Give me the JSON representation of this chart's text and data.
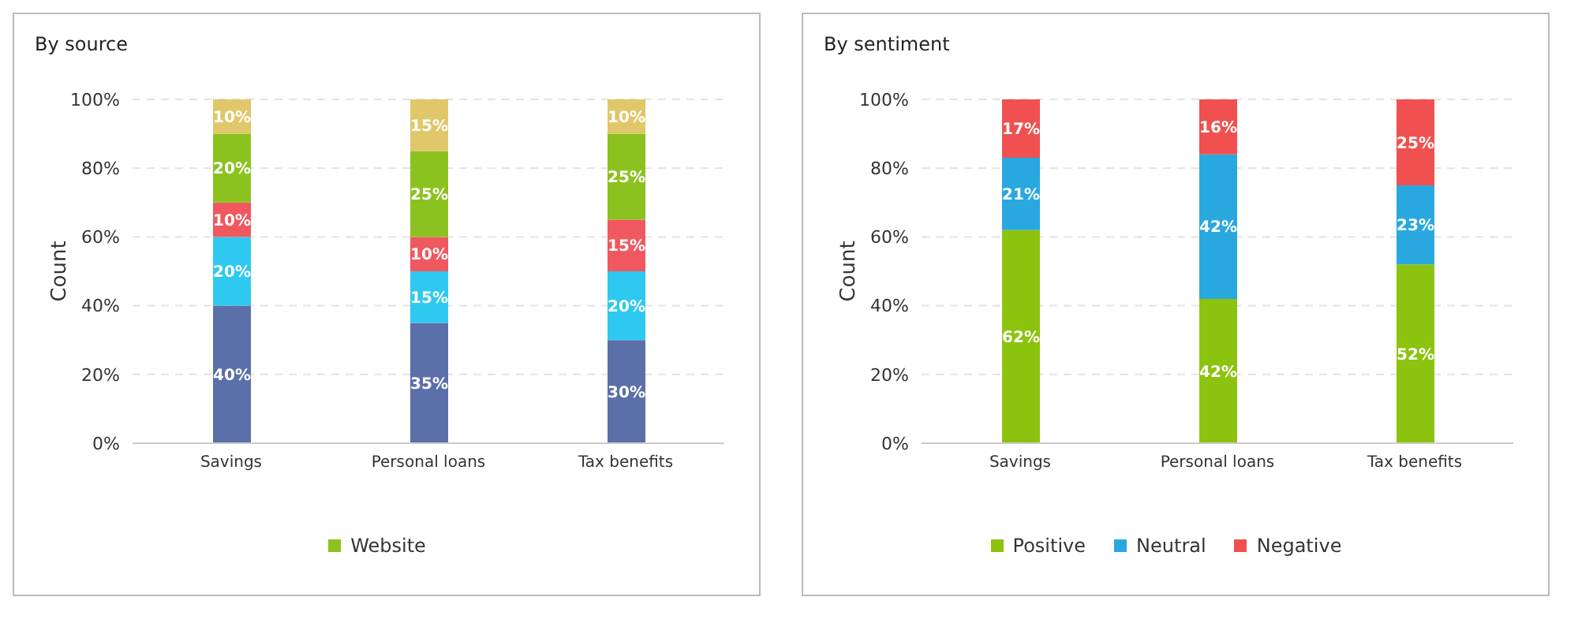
{
  "chart_data": [
    {
      "type": "bar",
      "title": "By source",
      "ylabel": "Count",
      "stacked": true,
      "grid": "y",
      "legend": "bottom",
      "categories": [
        "Savings",
        "Personal loans",
        "Tax benefits"
      ],
      "ylim": [
        0,
        100
      ],
      "yticks": [
        {
          "value": 0,
          "label": "0%"
        },
        {
          "value": 20,
          "label": "20%"
        },
        {
          "value": 40,
          "label": "40%"
        },
        {
          "value": 60,
          "label": "60%"
        },
        {
          "value": 80,
          "label": "80%"
        },
        {
          "value": 100,
          "label": "100%"
        }
      ],
      "series": [
        {
          "color": "#5b6fa8",
          "values": [
            40,
            35,
            30
          ],
          "value_labels": [
            "40%",
            "35%",
            "30%"
          ]
        },
        {
          "color": "#2ec9f0",
          "values": [
            20,
            15,
            20
          ],
          "value_labels": [
            "20%",
            "15%",
            "20%"
          ]
        },
        {
          "color": "#f0585f",
          "values": [
            10,
            10,
            15
          ],
          "value_labels": [
            "10%",
            "10%",
            "15%"
          ]
        },
        {
          "name": "Website",
          "color": "#8cc21f",
          "values": [
            20,
            25,
            25
          ],
          "value_labels": [
            "20%",
            "25%",
            "25%"
          ]
        },
        {
          "color": "#e0c76a",
          "values": [
            10,
            15,
            10
          ],
          "value_labels": [
            "10%",
            "15%",
            "10%"
          ]
        }
      ]
    },
    {
      "type": "bar",
      "title": "By sentiment",
      "ylabel": "Count",
      "stacked": true,
      "grid": "y",
      "legend": "bottom",
      "categories": [
        "Savings",
        "Personal loans",
        "Tax benefits"
      ],
      "ylim": [
        0,
        100
      ],
      "yticks": [
        {
          "value": 0,
          "label": "0%"
        },
        {
          "value": 20,
          "label": "20%"
        },
        {
          "value": 40,
          "label": "40%"
        },
        {
          "value": 60,
          "label": "60%"
        },
        {
          "value": 80,
          "label": "80%"
        },
        {
          "value": 100,
          "label": "100%"
        }
      ],
      "series": [
        {
          "name": "Positive",
          "color": "#8cc30f",
          "values": [
            62,
            42,
            52
          ],
          "value_labels": [
            "62%",
            "42%",
            "52%"
          ]
        },
        {
          "name": "Neutral",
          "color": "#29a8e0",
          "values": [
            21,
            42,
            23
          ],
          "value_labels": [
            "21%",
            "42%",
            "23%"
          ]
        },
        {
          "name": "Negative",
          "color": "#f0504f",
          "values": [
            17,
            16,
            25
          ],
          "value_labels": [
            "17%",
            "16%",
            "25%"
          ]
        }
      ]
    }
  ]
}
